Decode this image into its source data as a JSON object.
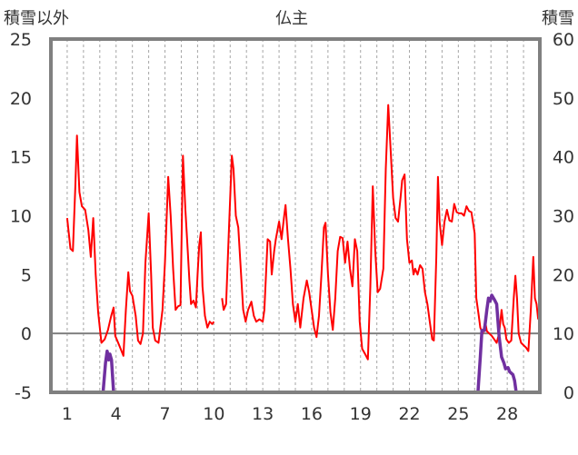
{
  "chart_data": {
    "type": "line",
    "title": "仏主",
    "left_axis_label": "積雪以外",
    "right_axis_label": "積雪",
    "left_ylim": [
      -5,
      25
    ],
    "left_yticks": [
      -5,
      0,
      5,
      10,
      15,
      20,
      25
    ],
    "right_ylim": [
      0,
      60
    ],
    "right_yticks": [
      0,
      10,
      20,
      30,
      40,
      50,
      60
    ],
    "xlim": [
      0,
      30
    ],
    "xticks": [
      1,
      4,
      7,
      10,
      13,
      16,
      19,
      22,
      25,
      28
    ],
    "grid": "vertical dashed lines at each day",
    "zero_line": true,
    "series": [
      {
        "axis": "left",
        "color": "#ff0000",
        "points": [
          [
            1.0,
            9.8
          ],
          [
            1.1,
            8.5
          ],
          [
            1.2,
            7.2
          ],
          [
            1.35,
            7.0
          ],
          [
            1.5,
            12.5
          ],
          [
            1.6,
            16.8
          ],
          [
            1.75,
            12.0
          ],
          [
            1.9,
            10.8
          ],
          [
            2.1,
            10.5
          ],
          [
            2.3,
            8.8
          ],
          [
            2.45,
            6.5
          ],
          [
            2.6,
            9.8
          ],
          [
            2.75,
            5.0
          ],
          [
            2.9,
            1.8
          ],
          [
            3.1,
            -0.8
          ],
          [
            3.3,
            -0.5
          ],
          [
            3.5,
            0.3
          ],
          [
            3.7,
            1.5
          ],
          [
            3.85,
            2.2
          ],
          [
            3.95,
            -0.2
          ],
          [
            4.1,
            -0.7
          ],
          [
            4.25,
            -1.2
          ],
          [
            4.45,
            -1.9
          ],
          [
            4.6,
            2.0
          ],
          [
            4.75,
            5.2
          ],
          [
            4.85,
            3.6
          ],
          [
            5.0,
            3.2
          ],
          [
            5.2,
            1.5
          ],
          [
            5.35,
            -0.6
          ],
          [
            5.5,
            -0.9
          ],
          [
            5.65,
            0.0
          ],
          [
            5.8,
            6.0
          ],
          [
            6.0,
            10.2
          ],
          [
            6.15,
            5.0
          ],
          [
            6.25,
            0.5
          ],
          [
            6.4,
            -0.6
          ],
          [
            6.6,
            -0.8
          ],
          [
            6.85,
            2.0
          ],
          [
            7.0,
            6.0
          ],
          [
            7.2,
            13.3
          ],
          [
            7.35,
            10.0
          ],
          [
            7.5,
            5.5
          ],
          [
            7.65,
            2.0
          ],
          [
            7.8,
            2.3
          ],
          [
            7.95,
            2.4
          ],
          [
            8.1,
            15.1
          ],
          [
            8.25,
            10.5
          ],
          [
            8.4,
            7.0
          ],
          [
            8.5,
            4.5
          ],
          [
            8.6,
            2.5
          ],
          [
            8.75,
            2.8
          ],
          [
            8.9,
            2.2
          ],
          [
            9.0,
            5.0
          ],
          [
            9.1,
            7.5
          ],
          [
            9.2,
            8.6
          ],
          [
            9.3,
            4.0
          ],
          [
            9.45,
            1.5
          ],
          [
            9.6,
            0.5
          ],
          [
            9.75,
            1.0
          ],
          [
            9.9,
            0.8
          ],
          [
            10.0,
            1.0
          ],
          null,
          [
            10.5,
            3.0
          ],
          [
            10.6,
            2.0
          ],
          [
            10.75,
            2.5
          ],
          [
            10.9,
            8.0
          ],
          [
            11.1,
            15.1
          ],
          [
            11.2,
            14.0
          ],
          [
            11.35,
            10.0
          ],
          [
            11.5,
            9.0
          ],
          [
            11.65,
            5.5
          ],
          [
            11.8,
            2.0
          ],
          [
            11.95,
            1.0
          ],
          [
            12.1,
            2.0
          ],
          [
            12.3,
            2.7
          ],
          [
            12.45,
            1.5
          ],
          [
            12.6,
            1.0
          ],
          [
            12.8,
            1.2
          ],
          [
            13.0,
            1.0
          ],
          [
            13.1,
            2.0
          ],
          [
            13.2,
            5.0
          ],
          [
            13.3,
            8.0
          ],
          [
            13.45,
            7.8
          ],
          [
            13.55,
            5.0
          ],
          [
            13.7,
            7.0
          ],
          [
            13.8,
            8.0
          ],
          [
            14.0,
            9.5
          ],
          [
            14.15,
            8.0
          ],
          [
            14.3,
            9.8
          ],
          [
            14.4,
            10.9
          ],
          [
            14.55,
            8.0
          ],
          [
            14.7,
            5.5
          ],
          [
            14.85,
            2.5
          ],
          [
            15.0,
            1.0
          ],
          [
            15.15,
            2.5
          ],
          [
            15.3,
            0.5
          ],
          [
            15.5,
            3.0
          ],
          [
            15.7,
            4.5
          ],
          [
            15.85,
            3.5
          ],
          [
            16.0,
            2.0
          ],
          [
            16.15,
            0.5
          ],
          [
            16.3,
            -0.3
          ],
          [
            16.45,
            1.5
          ],
          [
            16.6,
            5.0
          ],
          [
            16.75,
            9.0
          ],
          [
            16.85,
            9.4
          ],
          [
            17.0,
            5.0
          ],
          [
            17.15,
            1.8
          ],
          [
            17.3,
            0.3
          ],
          [
            17.45,
            3.0
          ],
          [
            17.6,
            7.0
          ],
          [
            17.75,
            8.2
          ],
          [
            17.9,
            8.1
          ],
          [
            18.05,
            6.0
          ],
          [
            18.2,
            7.8
          ],
          [
            18.35,
            5.5
          ],
          [
            18.5,
            4.0
          ],
          [
            18.65,
            8.0
          ],
          [
            18.8,
            7.0
          ],
          [
            18.95,
            1.0
          ],
          [
            19.1,
            -1.3
          ],
          [
            19.3,
            -1.8
          ],
          [
            19.45,
            -2.2
          ],
          [
            19.6,
            4.0
          ],
          [
            19.75,
            12.5
          ],
          [
            19.9,
            7.0
          ],
          [
            20.05,
            3.5
          ],
          [
            20.2,
            3.8
          ],
          [
            20.4,
            5.5
          ],
          [
            20.55,
            14.0
          ],
          [
            20.7,
            19.4
          ],
          [
            20.85,
            15.5
          ],
          [
            21.0,
            11.5
          ],
          [
            21.15,
            9.8
          ],
          [
            21.3,
            9.5
          ],
          [
            21.45,
            11.5
          ],
          [
            21.55,
            13.0
          ],
          [
            21.7,
            13.5
          ],
          [
            21.85,
            8.0
          ],
          [
            22.0,
            6.0
          ],
          [
            22.15,
            6.2
          ],
          [
            22.25,
            5.0
          ],
          [
            22.35,
            5.5
          ],
          [
            22.5,
            5.0
          ],
          [
            22.65,
            5.8
          ],
          [
            22.8,
            5.5
          ],
          [
            22.95,
            3.5
          ],
          [
            23.1,
            2.5
          ],
          [
            23.25,
            1.0
          ],
          [
            23.4,
            -0.5
          ],
          [
            23.5,
            -0.6
          ],
          [
            23.65,
            6.5
          ],
          [
            23.75,
            13.3
          ],
          [
            23.85,
            9.5
          ],
          [
            24.0,
            7.5
          ],
          [
            24.15,
            9.5
          ],
          [
            24.3,
            10.5
          ],
          [
            24.45,
            9.6
          ],
          [
            24.6,
            9.5
          ],
          [
            24.75,
            11.0
          ],
          [
            24.9,
            10.3
          ],
          [
            25.05,
            10.2
          ],
          [
            25.2,
            10.2
          ],
          [
            25.35,
            10.0
          ],
          [
            25.5,
            10.8
          ],
          [
            25.65,
            10.4
          ],
          [
            25.8,
            10.3
          ],
          [
            26.0,
            8.5
          ],
          [
            26.1,
            3.0
          ],
          [
            26.25,
            1.5
          ],
          [
            26.35,
            0.5
          ],
          [
            26.5,
            0.0
          ],
          [
            26.65,
            1.0
          ],
          [
            26.75,
            0.2
          ],
          [
            26.9,
            0.0
          ],
          [
            27.05,
            -0.2
          ],
          [
            27.2,
            -0.5
          ],
          [
            27.35,
            -0.8
          ],
          [
            27.5,
            0.0
          ],
          [
            27.65,
            2.0
          ],
          [
            27.75,
            0.8
          ],
          [
            27.85,
            0.5
          ],
          [
            27.95,
            -0.5
          ],
          [
            28.1,
            -0.8
          ],
          [
            28.25,
            -0.6
          ],
          [
            28.4,
            3.0
          ],
          [
            28.5,
            4.9
          ],
          [
            28.6,
            3.0
          ],
          [
            28.7,
            0.0
          ],
          [
            28.85,
            -0.8
          ],
          [
            29.0,
            -1.0
          ],
          [
            29.15,
            -1.2
          ],
          [
            29.3,
            -1.5
          ],
          [
            29.45,
            2.0
          ],
          [
            29.6,
            6.5
          ],
          [
            29.7,
            3.0
          ],
          [
            29.8,
            2.5
          ],
          [
            29.9,
            1.2
          ]
        ]
      },
      {
        "axis": "right",
        "color": "#7030a0",
        "points": [
          [
            1.0,
            0
          ],
          [
            3.0,
            0
          ],
          [
            3.2,
            0
          ],
          [
            3.35,
            5.0
          ],
          [
            3.45,
            7.0
          ],
          [
            3.55,
            5.5
          ],
          [
            3.62,
            6.5
          ],
          [
            3.72,
            5.5
          ],
          [
            3.85,
            0
          ],
          [
            4.0,
            0
          ],
          [
            10.0,
            0
          ],
          null,
          [
            10.5,
            0
          ],
          [
            26.2,
            0
          ],
          [
            26.35,
            6.0
          ],
          [
            26.45,
            10.5
          ],
          [
            26.6,
            10.5
          ],
          [
            26.75,
            14.0
          ],
          [
            26.85,
            16.0
          ],
          [
            26.95,
            15.5
          ],
          [
            27.05,
            16.5
          ],
          [
            27.2,
            15.8
          ],
          [
            27.35,
            15.0
          ],
          [
            27.5,
            9.5
          ],
          [
            27.65,
            6.0
          ],
          [
            27.8,
            5.0
          ],
          [
            27.9,
            4.0
          ],
          [
            28.05,
            4.2
          ],
          [
            28.15,
            3.5
          ],
          [
            28.35,
            3.0
          ],
          [
            28.45,
            2.0
          ],
          [
            28.55,
            0
          ],
          [
            28.7,
            0
          ],
          [
            30.0,
            0
          ]
        ]
      }
    ]
  }
}
